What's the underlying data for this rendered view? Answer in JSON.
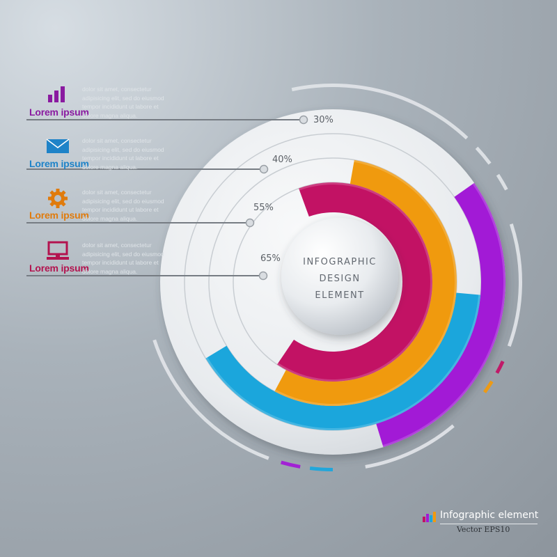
{
  "chart_data": {
    "type": "radial-bar",
    "title": "",
    "categories": [
      "Lorem ipsum",
      "Lorem ipsum",
      "Lorem ipsum",
      "Lorem ipsum"
    ],
    "values": [
      30,
      40,
      55,
      65
    ],
    "value_labels": [
      "30%",
      "40%",
      "55%",
      "65%"
    ],
    "center_label": [
      "INFOGRAPHIC",
      "DESIGN",
      "ELEMENT"
    ],
    "colors": [
      "#a21ad6",
      "#1ba6dc",
      "#f09a0e",
      "#c21264"
    ]
  },
  "legend": [
    {
      "title": "Lorem ipsum",
      "color": "#8a1aa0",
      "icon": "bar-chart-icon",
      "lines": [
        "dolor sit amet, consectetur",
        "adipisicing elit, sed do eiusmod",
        "tempor incididunt ut labore et",
        "dolore magna aliqua."
      ]
    },
    {
      "title": "Lorem ipsum",
      "color": "#1e83c8",
      "icon": "envelope-icon",
      "lines": [
        "dolor sit amet, consectetur",
        "adipisicing elit, sed do eiusmod",
        "tempor incididunt ut labore et",
        "dolore magna aliqua."
      ]
    },
    {
      "title": "Lorem ipsum",
      "color": "#e07b0c",
      "icon": "gear-icon",
      "lines": [
        "dolor sit amet, consectetur",
        "adipisicing elit, sed do eiusmod",
        "tempor incididunt ut labore et",
        "dolore magna aliqua."
      ]
    },
    {
      "title": "Lorem ipsum",
      "color": "#b3134f",
      "icon": "computer-icon",
      "lines": [
        "dolor sit amet, consectetur",
        "adipisicing elit, sed do eiusmod",
        "tempor incididunt ut labore et",
        "dolore magna aliqua."
      ]
    }
  ],
  "footer": {
    "title": "Infographic element",
    "subtitle": "Vector EPS10"
  }
}
